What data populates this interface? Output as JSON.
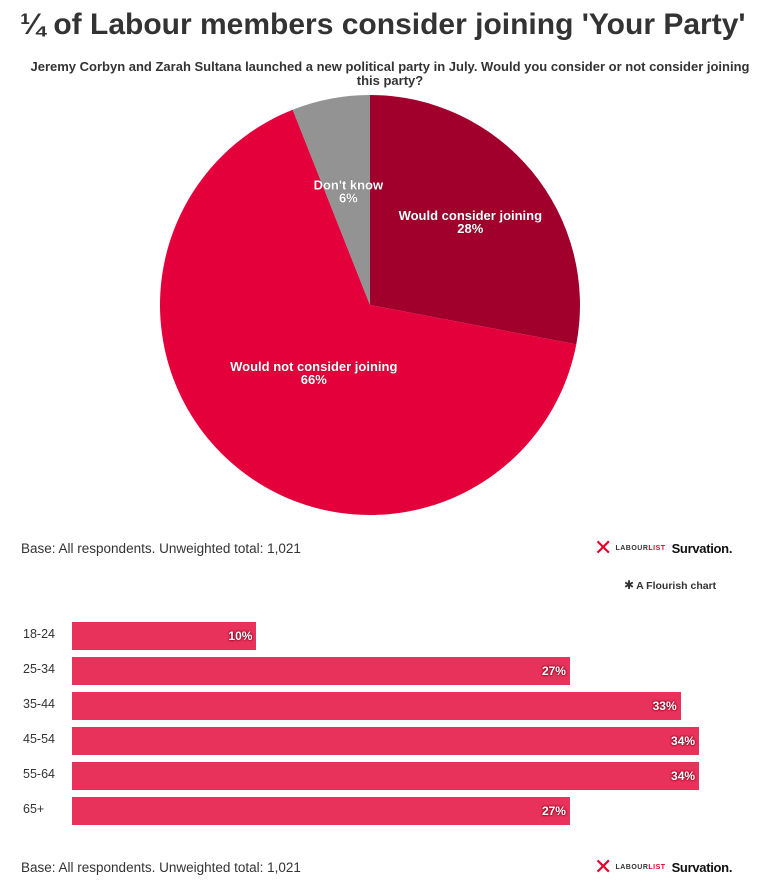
{
  "title": "¼ of Labour members consider joining 'Your Party'",
  "subtitle": "Jeremy Corbyn and Zarah Sultana launched a new political party in July. Would you consider or not consider joining this party?",
  "chart_data": [
    {
      "type": "pie",
      "labels": [
        "Would consider joining",
        "Would not consider joining",
        "Don't know"
      ],
      "values": [
        28,
        66,
        6
      ],
      "value_labels": [
        "28%",
        "66%",
        "6%"
      ],
      "colors": [
        "#a1002d",
        "#e4003b",
        "#939393"
      ],
      "start": "top, clockwise"
    },
    {
      "type": "bar",
      "orientation": "horizontal",
      "categories": [
        "18-24",
        "25-34",
        "35-44",
        "45-54",
        "55-64",
        "65+"
      ],
      "values": [
        10,
        27,
        33,
        34,
        34,
        27
      ],
      "value_labels": [
        "10%",
        "27%",
        "33%",
        "34%",
        "34%",
        "27%"
      ],
      "color": "#e8325b",
      "xlim": [
        0,
        34.7
      ]
    }
  ],
  "pie_base": "Base: All respondents. Unweighted total: 1,021",
  "bar_base": "Base: All respondents. Unweighted total: 1,021",
  "logos": {
    "x_mark": "✕",
    "labourlist_a": "LABOUR",
    "labourlist_b": "LIST",
    "survation": "Survation."
  },
  "flourish": {
    "star_icon": "✱",
    "label": "A Flourish chart"
  }
}
